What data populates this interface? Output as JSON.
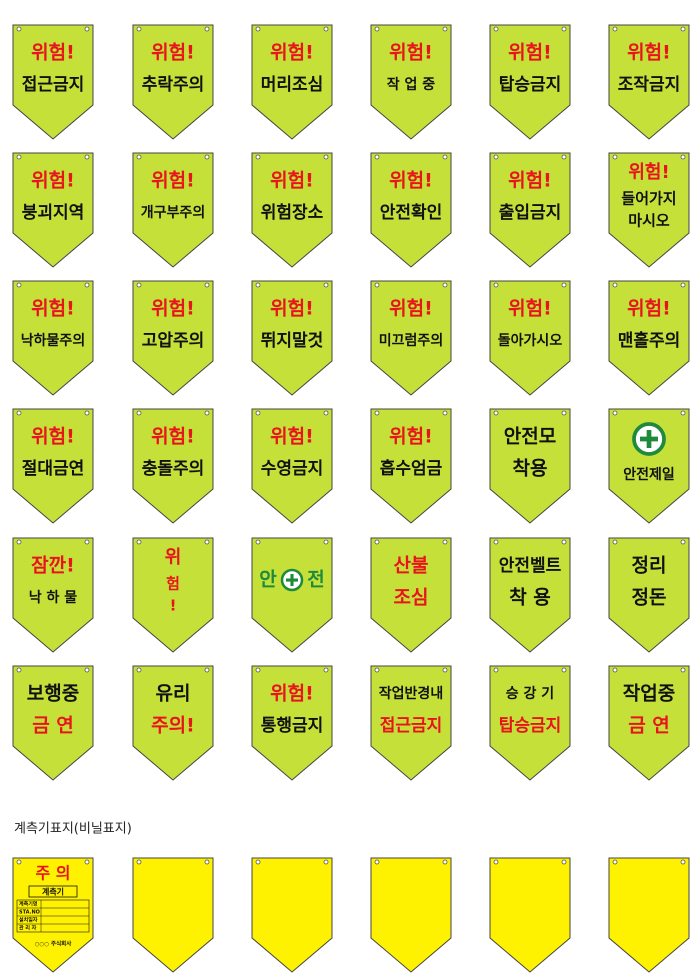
{
  "signs": [
    {
      "lines": [
        {
          "text": "위험!",
          "color": "#e8141b"
        },
        {
          "text": "접근금지",
          "color": "#111111"
        }
      ]
    },
    {
      "lines": [
        {
          "text": "위험!",
          "color": "#e8141b"
        },
        {
          "text": "추락주의",
          "color": "#111111"
        }
      ]
    },
    {
      "lines": [
        {
          "text": "위험!",
          "color": "#e8141b"
        },
        {
          "text": "머리조심",
          "color": "#111111"
        }
      ]
    },
    {
      "lines": [
        {
          "text": "위험!",
          "color": "#e8141b"
        },
        {
          "text": "작 업 중",
          "color": "#111111"
        }
      ]
    },
    {
      "lines": [
        {
          "text": "위험!",
          "color": "#e8141b"
        },
        {
          "text": "탑승금지",
          "color": "#111111"
        }
      ]
    },
    {
      "lines": [
        {
          "text": "위험!",
          "color": "#e8141b"
        },
        {
          "text": "조작금지",
          "color": "#111111"
        }
      ]
    },
    {
      "lines": [
        {
          "text": "위험!",
          "color": "#e8141b"
        },
        {
          "text": "붕괴지역",
          "color": "#111111"
        }
      ]
    },
    {
      "lines": [
        {
          "text": "위험!",
          "color": "#e8141b"
        },
        {
          "text": "개구부주의",
          "color": "#111111"
        }
      ]
    },
    {
      "lines": [
        {
          "text": "위험!",
          "color": "#e8141b"
        },
        {
          "text": "위험장소",
          "color": "#111111"
        }
      ]
    },
    {
      "lines": [
        {
          "text": "위험!",
          "color": "#e8141b"
        },
        {
          "text": "안전확인",
          "color": "#111111"
        }
      ]
    },
    {
      "lines": [
        {
          "text": "위험!",
          "color": "#e8141b"
        },
        {
          "text": "출입금지",
          "color": "#111111"
        }
      ]
    },
    {
      "lines": [
        {
          "text": "위험!",
          "color": "#e8141b"
        },
        {
          "text": "들어가지",
          "color": "#111111"
        },
        {
          "text": "마시오",
          "color": "#111111"
        }
      ]
    },
    {
      "lines": [
        {
          "text": "위험!",
          "color": "#e8141b"
        },
        {
          "text": "낙하물주의",
          "color": "#111111"
        }
      ]
    },
    {
      "lines": [
        {
          "text": "위험!",
          "color": "#e8141b"
        },
        {
          "text": "고압주의",
          "color": "#111111"
        }
      ]
    },
    {
      "lines": [
        {
          "text": "위험!",
          "color": "#e8141b"
        },
        {
          "text": "뛰지말것",
          "color": "#111111"
        }
      ]
    },
    {
      "lines": [
        {
          "text": "위험!",
          "color": "#e8141b"
        },
        {
          "text": "미끄럼주의",
          "color": "#111111"
        }
      ]
    },
    {
      "lines": [
        {
          "text": "위험!",
          "color": "#e8141b"
        },
        {
          "text": "돌아가시오",
          "color": "#111111"
        }
      ]
    },
    {
      "lines": [
        {
          "text": "위험!",
          "color": "#e8141b"
        },
        {
          "text": "맨홀주의",
          "color": "#111111"
        }
      ]
    },
    {
      "lines": [
        {
          "text": "위험!",
          "color": "#e8141b"
        },
        {
          "text": "절대금연",
          "color": "#111111"
        }
      ]
    },
    {
      "lines": [
        {
          "text": "위험!",
          "color": "#e8141b"
        },
        {
          "text": "충돌주의",
          "color": "#111111"
        }
      ]
    },
    {
      "lines": [
        {
          "text": "위험!",
          "color": "#e8141b"
        },
        {
          "text": "수영금지",
          "color": "#111111"
        }
      ]
    },
    {
      "lines": [
        {
          "text": "위험!",
          "color": "#e8141b"
        },
        {
          "text": "흡수엄금",
          "color": "#111111"
        }
      ]
    },
    {
      "lines": [
        {
          "text": "안전모",
          "color": "#111111"
        },
        {
          "text": "착용",
          "color": "#111111"
        }
      ]
    },
    {
      "icon": "cross-top",
      "lines": [
        {
          "text": "안전제일",
          "color": "#111111"
        }
      ]
    },
    {
      "lines": [
        {
          "text": "잠깐!",
          "color": "#e8141b"
        },
        {
          "text": "낙 하 물",
          "color": "#111111"
        }
      ]
    },
    {
      "lines": [
        {
          "text": "위",
          "color": "#e8141b"
        },
        {
          "text": "험",
          "color": "#e8141b"
        },
        {
          "text": "!",
          "color": "#e8141b"
        }
      ]
    },
    {
      "icon": "cross-between",
      "lines": [
        {
          "text": "안",
          "color": "#1e8a3c"
        },
        {
          "text": "전",
          "color": "#1e8a3c"
        }
      ]
    },
    {
      "lines": [
        {
          "text": "산불",
          "color": "#e8141b"
        },
        {
          "text": "조심",
          "color": "#e8141b"
        }
      ]
    },
    {
      "lines": [
        {
          "text": "안전벨트",
          "color": "#111111"
        },
        {
          "text": "착 용",
          "color": "#111111"
        }
      ]
    },
    {
      "lines": [
        {
          "text": "정리",
          "color": "#111111"
        },
        {
          "text": "정돈",
          "color": "#111111"
        }
      ]
    },
    {
      "lines": [
        {
          "text": "보행중",
          "color": "#111111"
        },
        {
          "text": "금 연",
          "color": "#e8141b"
        }
      ]
    },
    {
      "lines": [
        {
          "text": "유리",
          "color": "#111111"
        },
        {
          "text": "주의!",
          "color": "#e8141b"
        }
      ]
    },
    {
      "lines": [
        {
          "text": "위험!",
          "color": "#e8141b"
        },
        {
          "text": "통행금지",
          "color": "#111111"
        }
      ]
    },
    {
      "lines": [
        {
          "text": "작업반경내",
          "color": "#111111"
        },
        {
          "text": "접근금지",
          "color": "#e8141b"
        }
      ]
    },
    {
      "lines": [
        {
          "text": "승 강 기",
          "color": "#111111"
        },
        {
          "text": "탑승금지",
          "color": "#e8141b"
        }
      ]
    },
    {
      "lines": [
        {
          "text": "작업중",
          "color": "#111111"
        },
        {
          "text": "금 연",
          "color": "#e8141b"
        }
      ]
    }
  ],
  "section_title": "계측기표지(비닐표지)",
  "gauge_sign": {
    "heading": "주 의",
    "label": "계측기",
    "fields": [
      "계측기명",
      "STA.NO",
      "설치일자",
      "관 리 자"
    ],
    "footer": "○○○ 주식회사"
  }
}
